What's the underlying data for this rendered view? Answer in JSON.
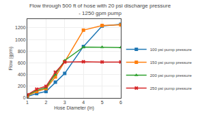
{
  "chart_data": {
    "type": "line",
    "title": "Flow through 500 ft of hose with 20 psi discharge pressure\n- 1250 gpm pump",
    "x_label": "Hose Diameter (in)",
    "y_label": "Flow (gpm)",
    "xlim": [
      1,
      6
    ],
    "ylim": [
      0,
      1350
    ],
    "xticks": [
      1,
      2,
      3,
      4,
      5,
      6
    ],
    "yticks": [
      0,
      200,
      400,
      600,
      800,
      1000,
      1200
    ],
    "grid": true,
    "legend": "lower right",
    "series": [
      {
        "name": "100 psi pump pressure",
        "marker": "square",
        "x": [
          1,
          1.5,
          2,
          2.5,
          3,
          4,
          5,
          6
        ],
        "values": [
          25,
          75,
          110,
          270,
          420,
          880,
          1230,
          1260
        ]
      },
      {
        "name": "150 psi pump pressure",
        "marker": "square",
        "x": [
          1,
          1.5,
          2,
          2.5,
          3,
          4,
          5,
          6
        ],
        "values": [
          35,
          110,
          160,
          360,
          620,
          1160,
          1240,
          1250
        ]
      },
      {
        "name": "200 psi pump pressure",
        "marker": "triangle",
        "x": [
          1,
          1.5,
          2,
          2.5,
          3,
          4,
          5,
          6
        ],
        "values": [
          45,
          130,
          175,
          400,
          640,
          870,
          870,
          865
        ]
      },
      {
        "name": "250 psi pump pressure",
        "marker": "x",
        "x": [
          1,
          1.5,
          2,
          2.5,
          3,
          4,
          5,
          6
        ],
        "values": [
          55,
          150,
          200,
          440,
          615,
          620,
          615,
          615
        ]
      }
    ]
  }
}
